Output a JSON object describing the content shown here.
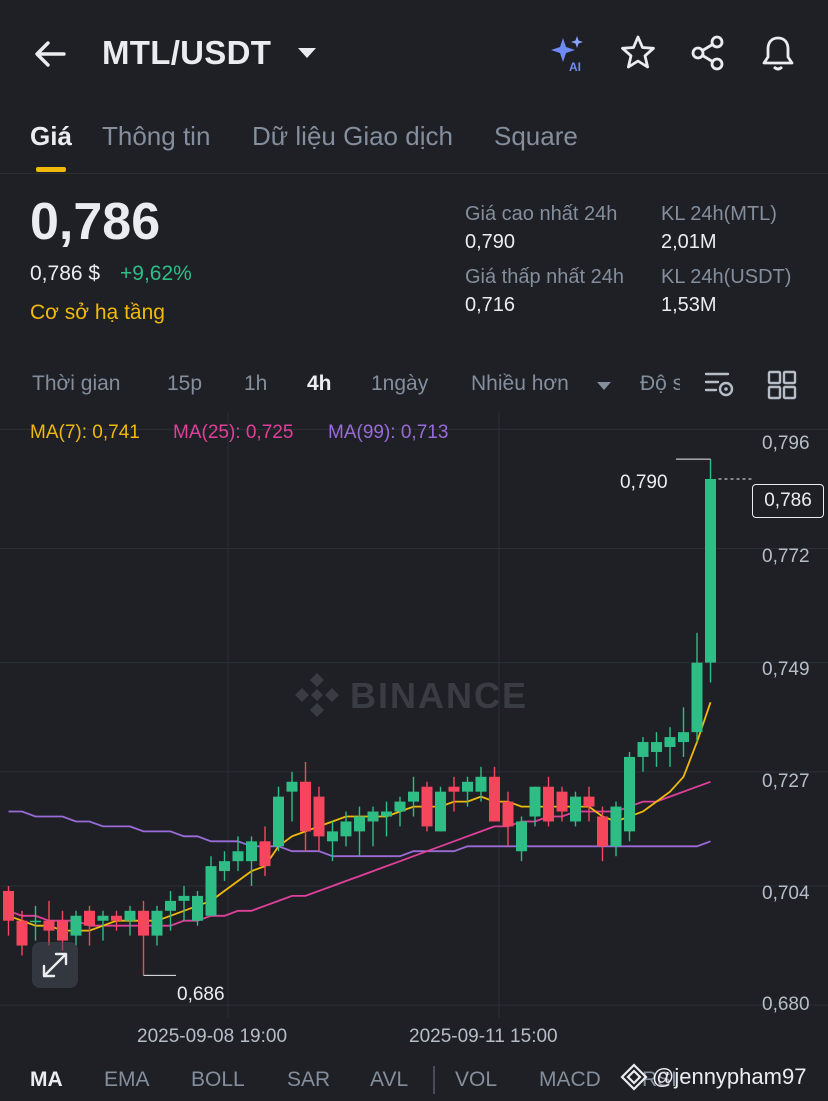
{
  "header": {
    "pair": "MTL/USDT",
    "icons": [
      "back-arrow-icon",
      "caret-down-icon",
      "ai-sparkle-icon",
      "star-icon",
      "share-icon",
      "bell-icon"
    ]
  },
  "tabs": [
    {
      "label": "Giá",
      "active": true
    },
    {
      "label": "Thông tin",
      "active": false
    },
    {
      "label": "Dữ liệu Giao dịch",
      "active": false
    },
    {
      "label": "Square",
      "active": false
    }
  ],
  "price": {
    "last": "0,786",
    "usd": "0,786 $",
    "change": "+9,62%",
    "tag": "Cơ sở hạ tầng"
  },
  "stats": {
    "high_label": "Giá cao nhất 24h",
    "high_value": "0,790",
    "low_label": "Giá thấp nhất 24h",
    "low_value": "0,716",
    "vol_base_label": "KL 24h(MTL)",
    "vol_base_value": "2,01M",
    "vol_quote_label": "KL 24h(USDT)",
    "vol_quote_value": "1,53M"
  },
  "intervals": {
    "time": "Thời gian",
    "i15m": "15p",
    "i1h": "1h",
    "i4h": "4h",
    "i1d": "1ngày",
    "more": "Nhiều hơn",
    "depth": "Độ s",
    "active": "4h"
  },
  "ma_legend": {
    "ma7": "MA(7): 0,741",
    "ma25": "MA(25): 0,725",
    "ma99": "MA(99): 0,713"
  },
  "colors": {
    "up": "#2ebd85",
    "down": "#f6465d",
    "ma7": "#f0b90b",
    "ma25": "#e0409a",
    "ma99": "#9a6bd6",
    "accent": "#f0b90b"
  },
  "watermark": "BINANCE",
  "chart_data": {
    "type": "candlestick",
    "y_axis_labels": [
      "0,796",
      "0,772",
      "0,749",
      "0,727",
      "0,704",
      "0,680"
    ],
    "y_axis_values": [
      0.796,
      0.772,
      0.749,
      0.727,
      0.704,
      0.68
    ],
    "ylim": [
      0.6774,
      0.7995
    ],
    "x_axis_labels": [
      "2025-09-08 19:00",
      "2025-09-11 15:00"
    ],
    "last_price_label": "0,786",
    "high_marker": "0,790",
    "low_marker": "0,686",
    "candles": [
      {
        "o": 0.703,
        "h": 0.704,
        "l": 0.694,
        "c": 0.697
      },
      {
        "o": 0.697,
        "h": 0.699,
        "l": 0.69,
        "c": 0.692
      },
      {
        "o": 0.697,
        "h": 0.7,
        "l": 0.693,
        "c": 0.697
      },
      {
        "o": 0.697,
        "h": 0.701,
        "l": 0.692,
        "c": 0.695
      },
      {
        "o": 0.697,
        "h": 0.699,
        "l": 0.691,
        "c": 0.693
      },
      {
        "o": 0.694,
        "h": 0.699,
        "l": 0.692,
        "c": 0.698
      },
      {
        "o": 0.699,
        "h": 0.7,
        "l": 0.692,
        "c": 0.696
      },
      {
        "o": 0.697,
        "h": 0.699,
        "l": 0.693,
        "c": 0.698
      },
      {
        "o": 0.698,
        "h": 0.699,
        "l": 0.695,
        "c": 0.697
      },
      {
        "o": 0.697,
        "h": 0.7,
        "l": 0.694,
        "c": 0.699
      },
      {
        "o": 0.699,
        "h": 0.701,
        "l": 0.686,
        "c": 0.694
      },
      {
        "o": 0.694,
        "h": 0.7,
        "l": 0.692,
        "c": 0.699
      },
      {
        "o": 0.699,
        "h": 0.703,
        "l": 0.695,
        "c": 0.701
      },
      {
        "o": 0.701,
        "h": 0.704,
        "l": 0.697,
        "c": 0.702
      },
      {
        "o": 0.697,
        "h": 0.703,
        "l": 0.696,
        "c": 0.702
      },
      {
        "o": 0.698,
        "h": 0.71,
        "l": 0.698,
        "c": 0.708
      },
      {
        "o": 0.707,
        "h": 0.711,
        "l": 0.705,
        "c": 0.709
      },
      {
        "o": 0.709,
        "h": 0.714,
        "l": 0.707,
        "c": 0.711
      },
      {
        "o": 0.709,
        "h": 0.714,
        "l": 0.704,
        "c": 0.713
      },
      {
        "o": 0.713,
        "h": 0.716,
        "l": 0.706,
        "c": 0.708
      },
      {
        "o": 0.712,
        "h": 0.724,
        "l": 0.711,
        "c": 0.722
      },
      {
        "o": 0.723,
        "h": 0.727,
        "l": 0.717,
        "c": 0.725
      },
      {
        "o": 0.725,
        "h": 0.729,
        "l": 0.711,
        "c": 0.715
      },
      {
        "o": 0.722,
        "h": 0.724,
        "l": 0.711,
        "c": 0.714
      },
      {
        "o": 0.713,
        "h": 0.717,
        "l": 0.709,
        "c": 0.715
      },
      {
        "o": 0.714,
        "h": 0.719,
        "l": 0.712,
        "c": 0.717
      },
      {
        "o": 0.715,
        "h": 0.72,
        "l": 0.71,
        "c": 0.718
      },
      {
        "o": 0.717,
        "h": 0.72,
        "l": 0.712,
        "c": 0.719
      },
      {
        "o": 0.718,
        "h": 0.721,
        "l": 0.714,
        "c": 0.719
      },
      {
        "o": 0.719,
        "h": 0.722,
        "l": 0.716,
        "c": 0.721
      },
      {
        "o": 0.721,
        "h": 0.726,
        "l": 0.718,
        "c": 0.723
      },
      {
        "o": 0.724,
        "h": 0.725,
        "l": 0.715,
        "c": 0.716
      },
      {
        "o": 0.715,
        "h": 0.724,
        "l": 0.715,
        "c": 0.723
      },
      {
        "o": 0.724,
        "h": 0.726,
        "l": 0.719,
        "c": 0.723
      },
      {
        "o": 0.723,
        "h": 0.726,
        "l": 0.72,
        "c": 0.725
      },
      {
        "o": 0.723,
        "h": 0.728,
        "l": 0.721,
        "c": 0.726
      },
      {
        "o": 0.726,
        "h": 0.728,
        "l": 0.718,
        "c": 0.717
      },
      {
        "o": 0.721,
        "h": 0.723,
        "l": 0.712,
        "c": 0.716
      },
      {
        "o": 0.711,
        "h": 0.718,
        "l": 0.709,
        "c": 0.717
      },
      {
        "o": 0.718,
        "h": 0.724,
        "l": 0.716,
        "c": 0.724
      },
      {
        "o": 0.724,
        "h": 0.726,
        "l": 0.716,
        "c": 0.717
      },
      {
        "o": 0.723,
        "h": 0.724,
        "l": 0.717,
        "c": 0.719
      },
      {
        "o": 0.717,
        "h": 0.723,
        "l": 0.716,
        "c": 0.722
      },
      {
        "o": 0.722,
        "h": 0.724,
        "l": 0.717,
        "c": 0.72
      },
      {
        "o": 0.718,
        "h": 0.72,
        "l": 0.709,
        "c": 0.712
      },
      {
        "o": 0.712,
        "h": 0.721,
        "l": 0.71,
        "c": 0.72
      },
      {
        "o": 0.715,
        "h": 0.731,
        "l": 0.713,
        "c": 0.73
      },
      {
        "o": 0.73,
        "h": 0.734,
        "l": 0.727,
        "c": 0.733
      },
      {
        "o": 0.731,
        "h": 0.735,
        "l": 0.728,
        "c": 0.733
      },
      {
        "o": 0.732,
        "h": 0.736,
        "l": 0.728,
        "c": 0.734
      },
      {
        "o": 0.733,
        "h": 0.74,
        "l": 0.73,
        "c": 0.735
      },
      {
        "o": 0.735,
        "h": 0.755,
        "l": 0.733,
        "c": 0.749
      },
      {
        "o": 0.749,
        "h": 0.79,
        "l": 0.745,
        "c": 0.786
      }
    ],
    "ma7": [
      0.698,
      0.697,
      0.696,
      0.696,
      0.695,
      0.695,
      0.695,
      0.696,
      0.697,
      0.697,
      0.697,
      0.697,
      0.698,
      0.699,
      0.7,
      0.701,
      0.703,
      0.705,
      0.707,
      0.708,
      0.712,
      0.714,
      0.715,
      0.716,
      0.717,
      0.718,
      0.718,
      0.718,
      0.718,
      0.719,
      0.72,
      0.72,
      0.72,
      0.721,
      0.721,
      0.722,
      0.721,
      0.721,
      0.72,
      0.72,
      0.72,
      0.72,
      0.72,
      0.72,
      0.718,
      0.717,
      0.718,
      0.719,
      0.721,
      0.723,
      0.726,
      0.733,
      0.741
    ],
    "ma25": [
      0.699,
      0.698,
      0.698,
      0.697,
      0.697,
      0.697,
      0.696,
      0.696,
      0.696,
      0.696,
      0.696,
      0.696,
      0.696,
      0.697,
      0.697,
      0.698,
      0.698,
      0.699,
      0.699,
      0.7,
      0.701,
      0.702,
      0.702,
      0.703,
      0.704,
      0.705,
      0.706,
      0.707,
      0.708,
      0.709,
      0.71,
      0.711,
      0.712,
      0.713,
      0.714,
      0.715,
      0.716,
      0.716,
      0.717,
      0.717,
      0.718,
      0.718,
      0.719,
      0.719,
      0.719,
      0.719,
      0.72,
      0.721,
      0.721,
      0.722,
      0.723,
      0.724,
      0.725
    ],
    "ma99": [
      0.719,
      0.719,
      0.718,
      0.718,
      0.718,
      0.717,
      0.717,
      0.716,
      0.716,
      0.716,
      0.715,
      0.715,
      0.715,
      0.714,
      0.714,
      0.713,
      0.713,
      0.713,
      0.712,
      0.712,
      0.712,
      0.711,
      0.711,
      0.711,
      0.71,
      0.71,
      0.71,
      0.71,
      0.71,
      0.71,
      0.711,
      0.711,
      0.711,
      0.711,
      0.712,
      0.712,
      0.712,
      0.712,
      0.712,
      0.712,
      0.712,
      0.712,
      0.712,
      0.712,
      0.712,
      0.712,
      0.712,
      0.712,
      0.712,
      0.712,
      0.712,
      0.712,
      0.713
    ]
  },
  "bottom_tabs": [
    {
      "label": "MA",
      "active": true
    },
    {
      "label": "EMA",
      "active": false
    },
    {
      "label": "BOLL",
      "active": false
    },
    {
      "label": "SAR",
      "active": false
    },
    {
      "label": "AVL",
      "active": false
    },
    {
      "label": "VOL",
      "active": false
    },
    {
      "label": "MACD",
      "active": false
    },
    {
      "label": "RSI",
      "active": false
    }
  ],
  "handle": "@jennypham97"
}
